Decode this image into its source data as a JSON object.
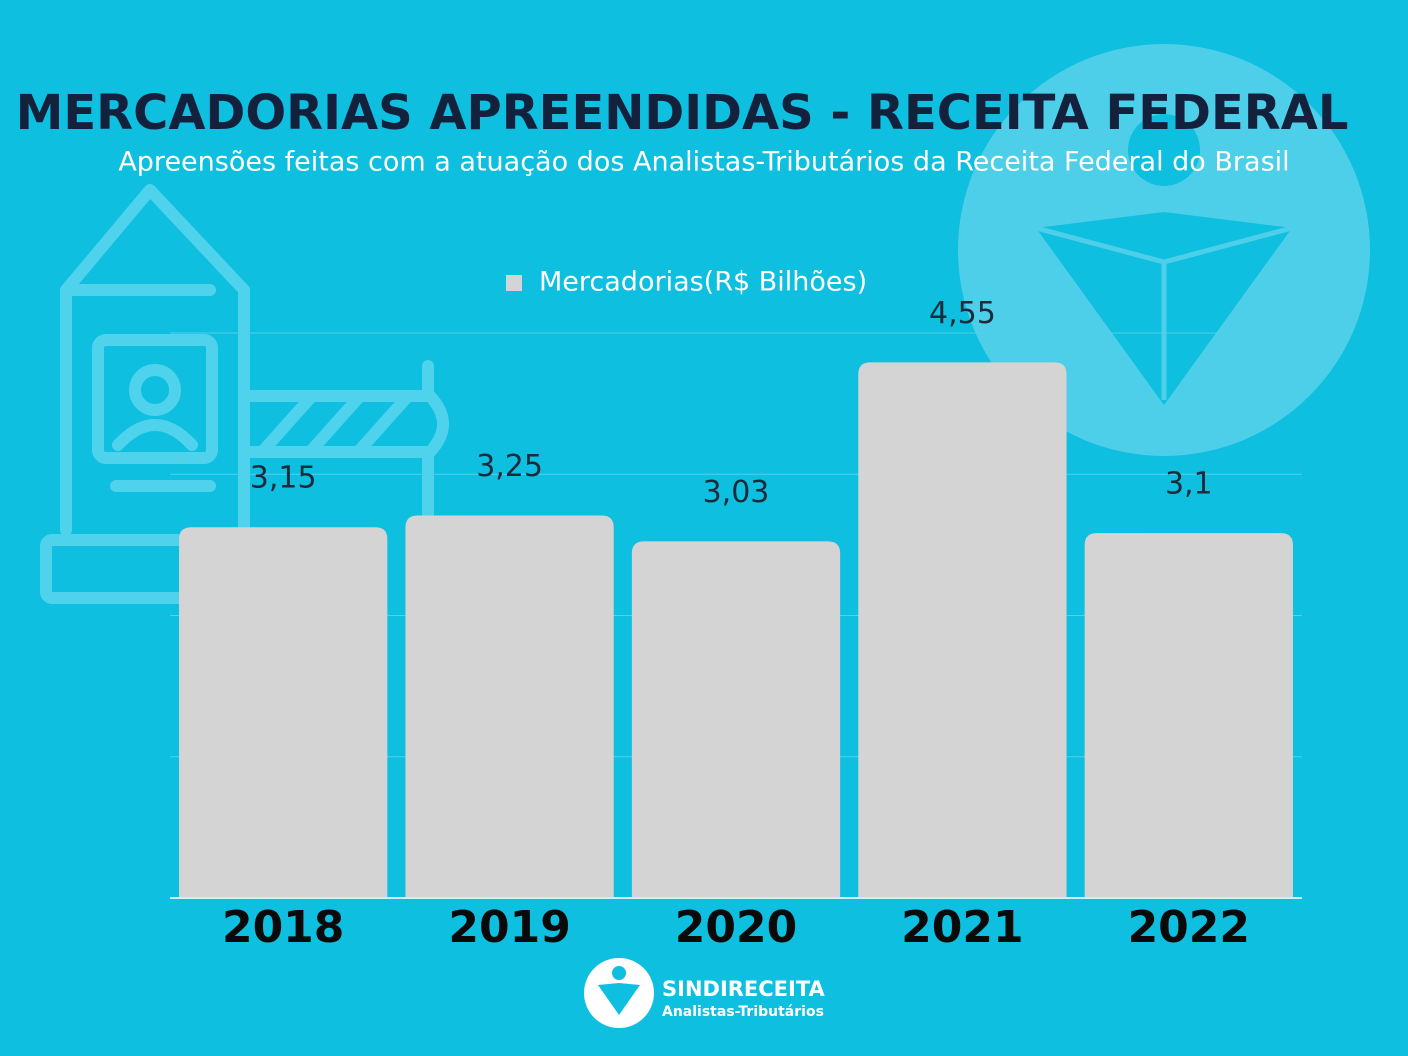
{
  "chart_data": {
    "type": "bar",
    "title": "MERCADORIAS APREENDIDAS - RECEITA FEDERAL",
    "subtitle": "Apreensões feitas com a atuação dos Analistas-Tributários da Receita Federal do Brasil",
    "categories": [
      "2018",
      "2019",
      "2020",
      "2021",
      "2022"
    ],
    "series": [
      {
        "name": "Mercadorias(R$ Bilhões)",
        "color": "#d4d4d4",
        "values": [
          3.15,
          3.25,
          3.03,
          4.55,
          3.1
        ],
        "value_labels": [
          "3,15",
          "3,25",
          "3,03",
          "4,55",
          "3,1"
        ]
      }
    ],
    "ylim": [
      0,
      4.8
    ],
    "yticks": [
      0,
      1.2,
      2.4,
      3.6,
      4.8
    ],
    "grid": true
  },
  "footer": {
    "brand": "SINDIRECEITA",
    "tagline": "Analistas-Tributários"
  }
}
